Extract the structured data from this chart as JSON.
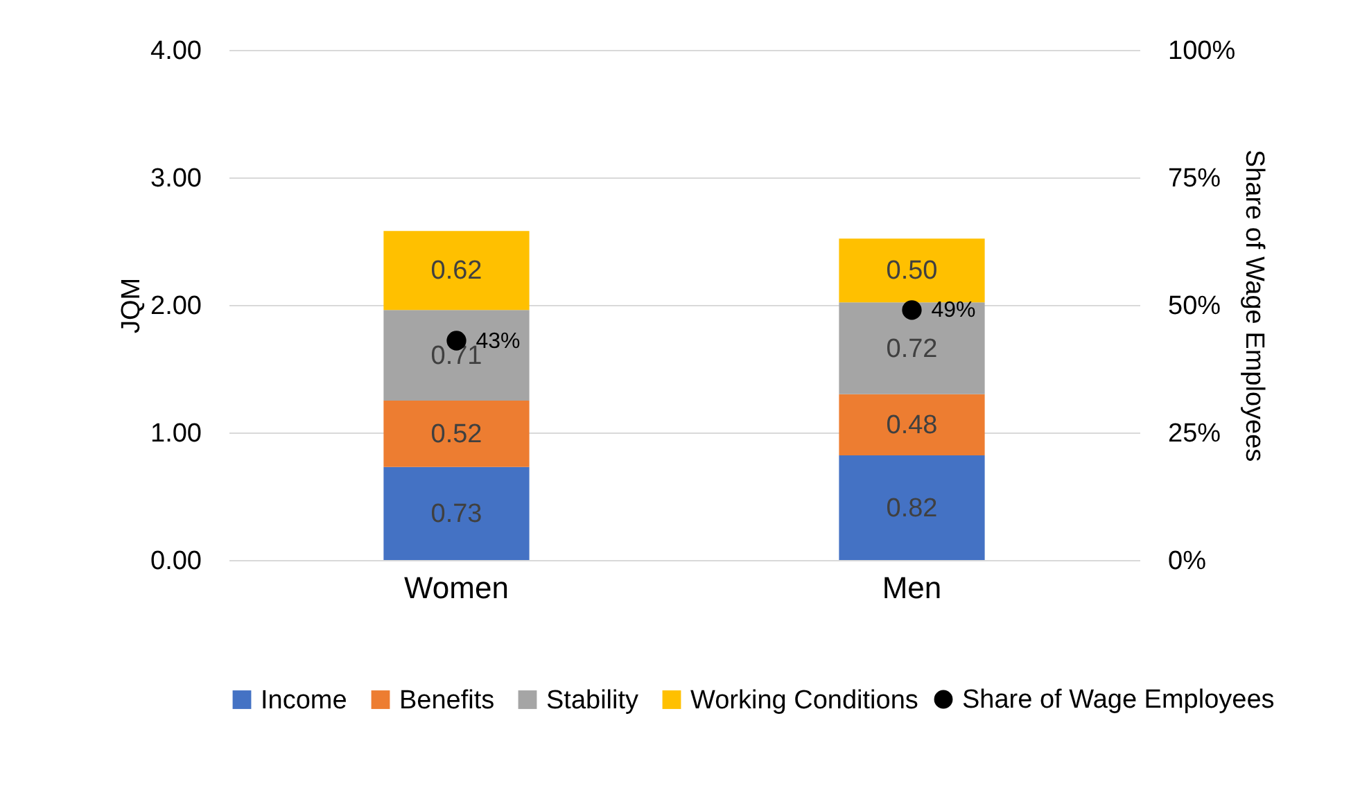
{
  "chart_data": {
    "type": "bar",
    "stacked": true,
    "categories": [
      "Women",
      "Men"
    ],
    "series": [
      {
        "name": "Income",
        "color": "#4472c4",
        "values": [
          0.73,
          0.82
        ],
        "value_labels": [
          "0.73",
          "0.82"
        ]
      },
      {
        "name": "Benefits",
        "color": "#ed7d31",
        "values": [
          0.52,
          0.48
        ],
        "value_labels": [
          "0.52",
          "0.48"
        ]
      },
      {
        "name": "Stability",
        "color": "#a5a5a5",
        "values": [
          0.71,
          0.72
        ],
        "value_labels": [
          "0.71",
          "0.72"
        ]
      },
      {
        "name": "Working Conditions",
        "color": "#ffc000",
        "values": [
          0.62,
          0.5
        ],
        "value_labels": [
          "0.62",
          "0.50"
        ]
      },
      {
        "name": "Share of Wage Employees",
        "type": "scatter",
        "axis": "y2",
        "color": "#000000",
        "values": [
          43,
          49
        ],
        "value_labels": [
          "43%",
          "49%"
        ]
      }
    ],
    "ylabel": "JQM",
    "y2label": "Share of Wage Employees",
    "ylim": [
      0,
      4
    ],
    "yticks": [
      {
        "value": 0,
        "label": "0.00"
      },
      {
        "value": 1,
        "label": "1.00"
      },
      {
        "value": 2,
        "label": "2.00"
      },
      {
        "value": 3,
        "label": "3.00"
      },
      {
        "value": 4,
        "label": "4.00"
      }
    ],
    "y2lim": [
      0,
      100
    ],
    "y2ticks": [
      {
        "value": 0,
        "label": "0%"
      },
      {
        "value": 25,
        "label": "25%"
      },
      {
        "value": 50,
        "label": "50%"
      },
      {
        "value": 75,
        "label": "75%"
      },
      {
        "value": 100,
        "label": "100%"
      }
    ],
    "grid": "y",
    "legend": "bottom",
    "marker": "circle"
  }
}
